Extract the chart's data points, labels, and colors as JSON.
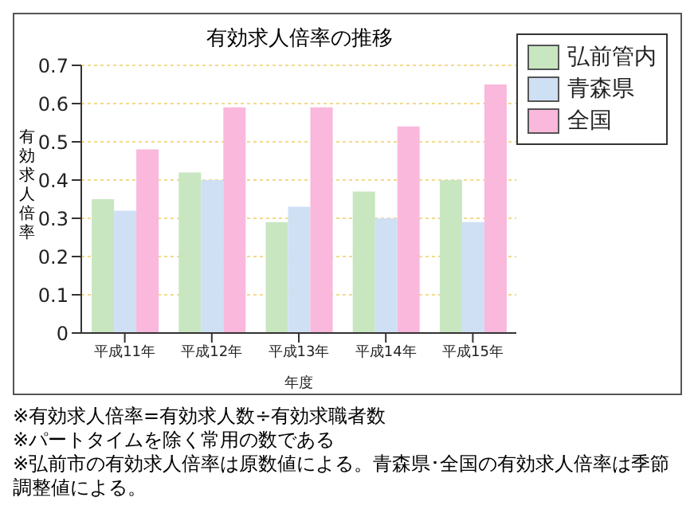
{
  "chart_data": {
    "type": "bar",
    "title": "有効求人倍率の推移",
    "xlabel": "年度",
    "ylabel": "有効求人倍率",
    "categories": [
      "平成11年",
      "平成12年",
      "平成13年",
      "平成14年",
      "平成15年"
    ],
    "series": [
      {
        "name": "弘前管内",
        "color": "#c8e6c0",
        "values": [
          0.35,
          0.42,
          0.29,
          0.37,
          0.4
        ]
      },
      {
        "name": "青森県",
        "color": "#cfe0f5",
        "values": [
          0.32,
          0.4,
          0.33,
          0.3,
          0.29
        ]
      },
      {
        "name": "全国",
        "color": "#f9b8dc",
        "values": [
          0.48,
          0.59,
          0.59,
          0.54,
          0.65
        ]
      }
    ],
    "ylim": [
      0,
      0.7
    ],
    "yticks": [
      0,
      0.1,
      0.2,
      0.3,
      0.4,
      0.5,
      0.6,
      0.7
    ],
    "grid": "y",
    "legend": "top right",
    "annotations": [
      "※有効求人倍率=有効求人数÷有効求職者数",
      "※パートタイムを除く常用の数である",
      "※弘前市の有効求人倍率は原数値による。青森県･全国の有効求人倍率は季節調整値による。"
    ]
  }
}
